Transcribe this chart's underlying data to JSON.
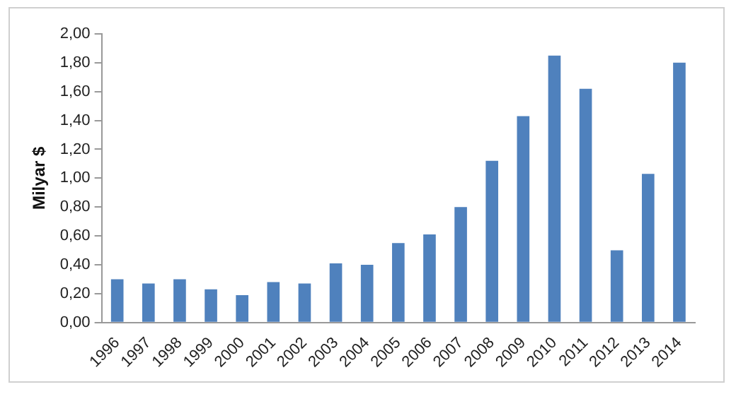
{
  "chart_data": {
    "type": "bar",
    "ylabel": "Milyar $",
    "categories": [
      "1996",
      "1997",
      "1998",
      "1999",
      "2000",
      "2001",
      "2002",
      "2003",
      "2004",
      "2005",
      "2006",
      "2007",
      "2008",
      "2009",
      "2010",
      "2011",
      "2012",
      "2013",
      "2014"
    ],
    "values": [
      0.3,
      0.27,
      0.3,
      0.23,
      0.19,
      0.28,
      0.27,
      0.41,
      0.4,
      0.55,
      0.61,
      0.8,
      1.12,
      1.43,
      1.85,
      1.62,
      0.5,
      1.03,
      1.8
    ],
    "color": "#4f81bd",
    "ylim": [
      0,
      2
    ],
    "yticks": [
      {
        "value": 0,
        "label": "0,00"
      },
      {
        "value": 0.2,
        "label": "0,20"
      },
      {
        "value": 0.4,
        "label": "0,40"
      },
      {
        "value": 0.6,
        "label": "0,60"
      },
      {
        "value": 0.8,
        "label": "0,80"
      },
      {
        "value": 1,
        "label": "1,00"
      },
      {
        "value": 1.2,
        "label": "1,20"
      },
      {
        "value": 1.4,
        "label": "1,40"
      },
      {
        "value": 1.6,
        "label": "1,60"
      },
      {
        "value": 1.8,
        "label": "1,80"
      },
      {
        "value": 2,
        "label": "2,00"
      }
    ],
    "grid": false,
    "legend": false
  }
}
